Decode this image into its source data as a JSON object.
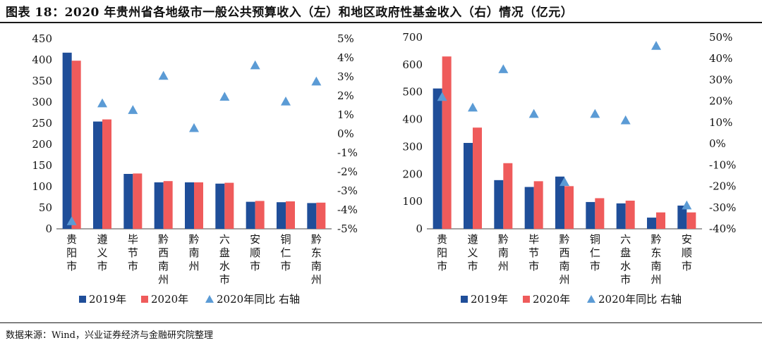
{
  "title": "图表 18：2020 年贵州省各地级市一般公共预算收入（左）和地区政府性基金收入（右）情况（亿元）",
  "source": "数据来源：Wind，兴业证券经济与金融研究院整理",
  "colors": {
    "s2019": "#1f4e99",
    "s2020": "#ef5b5b",
    "yoy": "#5b9bd5"
  },
  "chart_data": [
    {
      "type": "bar",
      "title": "一般公共预算收入（左）",
      "categories": [
        "贵阳市",
        "遵义市",
        "毕节市",
        "黔西南州",
        "黔南州",
        "六盘水市",
        "安顺市",
        "铜仁市",
        "黔东南州"
      ],
      "series": [
        {
          "name": "2019年",
          "axis": "left",
          "values": [
            417,
            254,
            130,
            110,
            110,
            107,
            64,
            63,
            61
          ]
        },
        {
          "name": "2020年",
          "axis": "left",
          "values": [
            398,
            259,
            131,
            113,
            110,
            109,
            66,
            65,
            62
          ]
        },
        {
          "name": "2020年同比 右轴",
          "axis": "right",
          "type": "scatter",
          "values": [
            -4.6,
            1.6,
            1.25,
            3.05,
            0.3,
            1.95,
            3.6,
            1.7,
            2.75
          ]
        }
      ],
      "ylim": [
        0,
        450
      ],
      "yticks": [
        0,
        50,
        100,
        150,
        200,
        250,
        300,
        350,
        400,
        450
      ],
      "y2lim": [
        -5,
        5
      ],
      "y2ticks": [
        -5,
        -4,
        -3,
        -2,
        -1,
        0,
        1,
        2,
        3,
        4,
        5
      ],
      "y2tick_labels": [
        "-5%",
        "-4%",
        "-3%",
        "-2%",
        "-1%",
        "0%",
        "1%",
        "2%",
        "3%",
        "4%",
        "5%"
      ],
      "legend": [
        "2019年",
        "2020年",
        "2020年同比 右轴"
      ],
      "legend_position": "bottom"
    },
    {
      "type": "bar",
      "title": "地区政府性基金收入（右）",
      "categories": [
        "贵阳市",
        "遵义市",
        "黔南州",
        "毕节市",
        "黔西南州",
        "铜仁市",
        "六盘水市",
        "黔东南州",
        "安顺市"
      ],
      "series": [
        {
          "name": "2019年",
          "axis": "left",
          "values": [
            513,
            314,
            178,
            153,
            191,
            98,
            93,
            41,
            85
          ]
        },
        {
          "name": "2020年",
          "axis": "left",
          "values": [
            630,
            370,
            240,
            174,
            156,
            112,
            103,
            60,
            60
          ]
        },
        {
          "name": "2020年同比 右轴",
          "axis": "right",
          "type": "scatter",
          "values": [
            22,
            17,
            35,
            14,
            -18,
            14,
            11,
            46,
            -29
          ]
        }
      ],
      "ylim": [
        0,
        700
      ],
      "yticks": [
        0,
        100,
        200,
        300,
        400,
        500,
        600,
        700
      ],
      "y2lim": [
        -40,
        50
      ],
      "y2ticks": [
        -40,
        -30,
        -20,
        -10,
        0,
        10,
        20,
        30,
        40,
        50
      ],
      "y2tick_labels": [
        "-40%",
        "-30%",
        "-20%",
        "-10%",
        "0%",
        "10%",
        "20%",
        "30%",
        "40%",
        "50%"
      ],
      "legend": [
        "2019年",
        "2020年",
        "2020年同比 右轴"
      ],
      "legend_position": "bottom"
    }
  ]
}
